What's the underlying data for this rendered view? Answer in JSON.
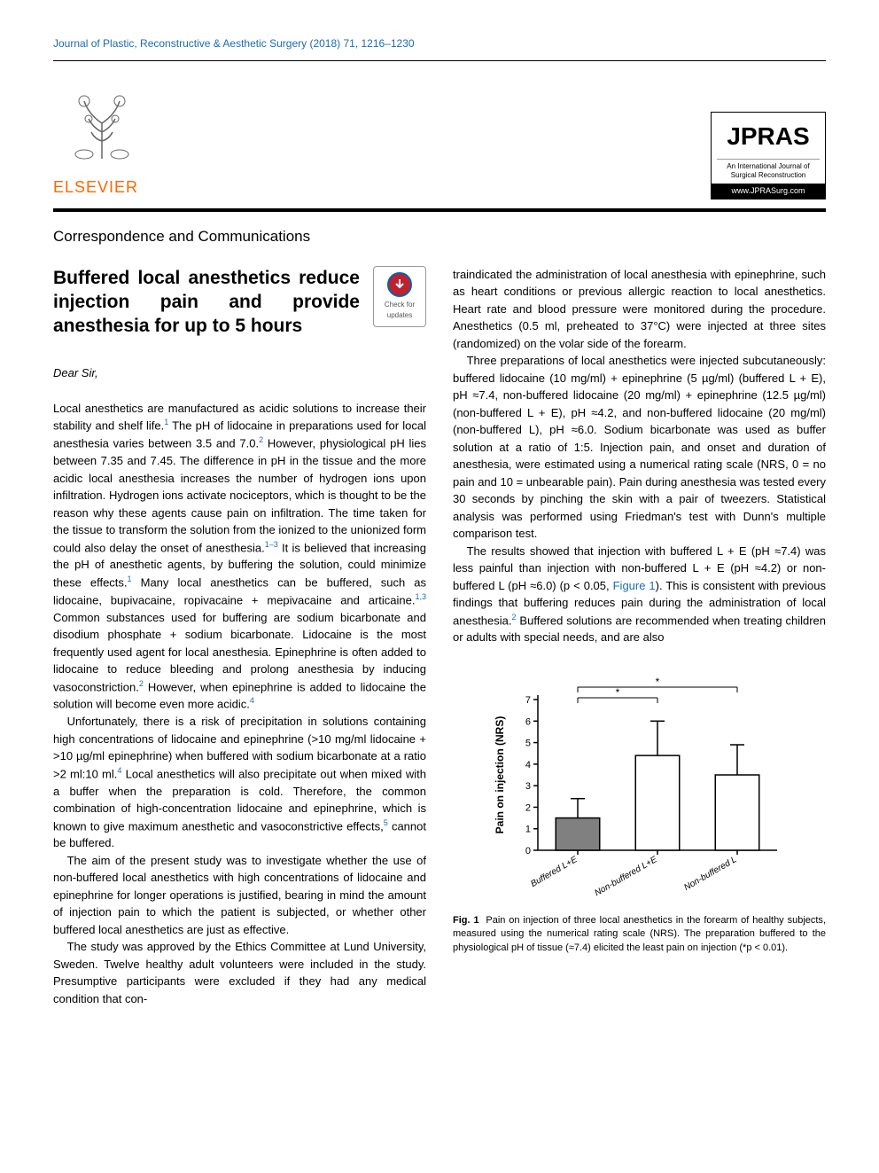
{
  "journal_header": "Journal of Plastic, Reconstructive & Aesthetic Surgery (2018) 71, 1216–1230",
  "elsevier_label": "ELSEVIER",
  "jpras": {
    "title": "JPRAS",
    "subtitle": "An International Journal of Surgical Reconstruction",
    "url": "www.JPRASurg.com"
  },
  "section_header": "Correspondence and Communications",
  "article_title": "Buffered local anesthetics reduce injection pain and provide anesthesia for up to 5 hours",
  "check_updates": "Check for updates",
  "salutation": "Dear Sir,",
  "left_paragraphs": [
    "Local anesthetics are manufactured as acidic solutions to increase their stability and shelf life.<sup class='ref'>1</sup> The pH of lidocaine in preparations used for local anesthesia varies between 3.5 and 7.0.<sup class='ref'>2</sup> However, physiological pH lies between 7.35 and 7.45. The difference in pH in the tissue and the more acidic local anesthesia increases the number of hydrogen ions upon infiltration. Hydrogen ions activate nociceptors, which is thought to be the reason why these agents cause pain on infiltration. The time taken for the tissue to transform the solution from the ionized to the unionized form could also delay the onset of anesthesia.<sup class='ref'>1–3</sup> It is believed that increasing the pH of anesthetic agents, by buffering the solution, could minimize these effects.<sup class='ref'>1</sup> Many local anesthetics can be buffered, such as lidocaine, bupivacaine, ropivacaine + mepivacaine and articaine.<sup class='ref'>1,3</sup> Common substances used for buffering are sodium bicarbonate and disodium phosphate + sodium bicarbonate. Lidocaine is the most frequently used agent for local anesthesia. Epinephrine is often added to lidocaine to reduce bleeding and prolong anesthesia by inducing vasoconstriction.<sup class='ref'>2</sup> However, when epinephrine is added to lidocaine the solution will become even more acidic.<sup class='ref'>4</sup>",
    "Unfortunately, there is a risk of precipitation in solutions containing high concentrations of lidocaine and epinephrine (>10 mg/ml lidocaine + >10 µg/ml epinephrine) when buffered with sodium bicarbonate at a ratio >2 ml:10 ml.<sup class='ref'>4</sup> Local anesthetics will also precipitate out when mixed with a buffer when the preparation is cold. Therefore, the common combination of high-concentration lidocaine and epinephrine, which is known to give maximum anesthetic and vasoconstrictive effects,<sup class='ref'>5</sup> cannot be buffered.",
    "The aim of the present study was to investigate whether the use of non-buffered local anesthetics with high concentrations of lidocaine and epinephrine for longer operations is justified, bearing in mind the amount of injection pain to which the patient is subjected, or whether other buffered local anesthetics are just as effective.",
    "The study was approved by the Ethics Committee at Lund University, Sweden. Twelve healthy adult volunteers were included in the study. Presumptive participants were excluded if they had any medical condition that con-"
  ],
  "right_paragraphs": [
    "traindicated the administration of local anesthesia with epinephrine, such as heart conditions or previous allergic reaction to local anesthetics. Heart rate and blood pressure were monitored during the procedure. Anesthetics (0.5 ml, preheated to 37°C) were injected at three sites (randomized) on the volar side of the forearm.",
    "Three preparations of local anesthetics were injected subcutaneously: buffered lidocaine (10 mg/ml) + epinephrine (5 µg/ml) (buffered L + E), pH ≈7.4, non-buffered lidocaine (20 mg/ml) + epinephrine (12.5 µg/ml) (non-buffered L + E), pH ≈4.2, and non-buffered lidocaine (20 mg/ml) (non-buffered L), pH ≈6.0. Sodium bicarbonate was used as buffer solution at a ratio of 1:5. Injection pain, and onset and duration of anesthesia, were estimated using a numerical rating scale (NRS, 0 = no pain and 10 = unbearable pain). Pain during anesthesia was tested every 30 seconds by pinching the skin with a pair of tweezers. Statistical analysis was performed using Friedman's test with Dunn's multiple comparison test.",
    "The results showed that injection with buffered L + E (pH ≈7.4) was less painful than injection with non-buffered L + E (pH ≈4.2) or non-buffered L (pH ≈6.0) (p < 0.05, <span class='figlink'>Figure 1</span>). This is consistent with previous findings that buffering reduces pain during the administration of local anesthesia.<sup class='ref'>2</sup> Buffered solutions are recommended when treating children or adults with special needs, and are also"
  ],
  "figure_caption_label": "Fig. 1",
  "figure_caption_text": "Pain on injection of three local anesthetics in the forearm of healthy subjects, measured using the numerical rating scale (NRS). The preparation buffered to the physiological pH of tissue (≈7.4) elicited the least pain on injection (*p < 0.01).",
  "chart": {
    "type": "bar",
    "ylabel": "Pain on injection (NRS)",
    "ylim": [
      0,
      7
    ],
    "ytick_step": 1,
    "categories": [
      "Buffered L+E",
      "Non-buffered L+E",
      "Non-buffered L"
    ],
    "values": [
      1.5,
      4.4,
      3.5
    ],
    "errors": [
      0.9,
      1.6,
      1.4
    ],
    "bar_colors": [
      "#808080",
      "#ffffff",
      "#ffffff"
    ],
    "bar_border": "#000000",
    "bar_width": 0.55,
    "axis_color": "#000000",
    "label_fontsize": 12,
    "tick_fontsize": 11,
    "significance_pairs": [
      [
        0,
        1
      ],
      [
        0,
        2
      ]
    ],
    "significance_marker": "*"
  }
}
